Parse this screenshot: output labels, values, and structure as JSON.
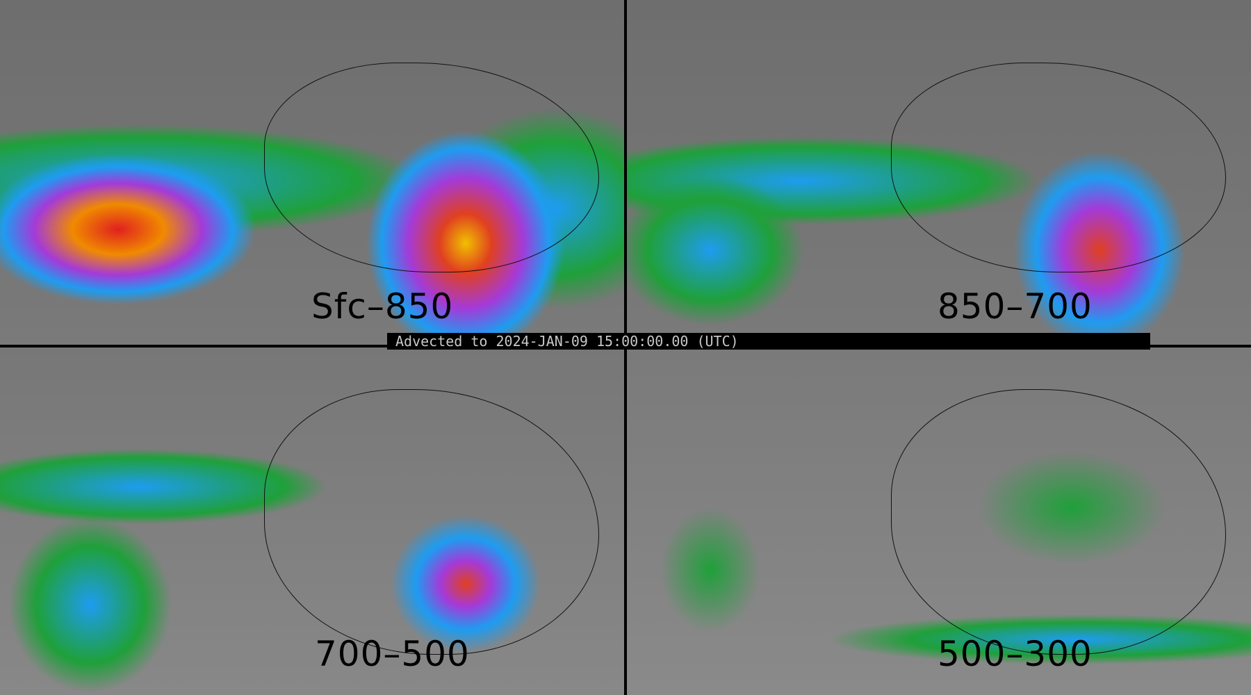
{
  "banner": {
    "text": "Advected to 2024-JAN-09 15:00:00.00 (UTC)"
  },
  "panels": [
    {
      "label": "Sfc–850"
    },
    {
      "label": "850–700"
    },
    {
      "label": "700–500"
    },
    {
      "label": "500–300"
    }
  ],
  "colors": {
    "background": "#6e6e6e",
    "low": "#1fa03a",
    "mid": "#1e9cf0",
    "high": "#a43ad8",
    "peak": "#f0a800",
    "max": "#e02020"
  }
}
